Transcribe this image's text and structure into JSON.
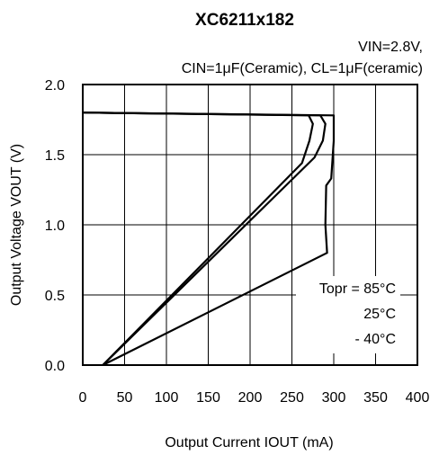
{
  "chart_data": {
    "type": "line",
    "title": "XC6211x182",
    "subtitle_line1": "VIN=2.8V,",
    "subtitle_line2": "CIN=1μF(Ceramic), CL=1μF(ceramic)",
    "xlabel": "Output Current IOUT (mA)",
    "ylabel": "Output Voltage VOUT (V)",
    "xlim": [
      0,
      400
    ],
    "ylim": [
      0,
      2.0
    ],
    "xticks": [
      "0",
      "50",
      "100",
      "150",
      "200",
      "250",
      "300",
      "350",
      "400"
    ],
    "yticks": [
      "0.0",
      "0.5",
      "1.0",
      "1.5",
      "2.0"
    ],
    "grid": true,
    "annotations": {
      "line1": "Topr = 85°C",
      "line2": "25°C",
      "line3": "- 40°C"
    },
    "series": [
      {
        "x": [
          0,
          270,
          275,
          271,
          262,
          24
        ],
        "y": [
          1.8,
          1.78,
          1.72,
          1.6,
          1.44,
          0.0
        ]
      },
      {
        "x": [
          0,
          284,
          290,
          287,
          277,
          24
        ],
        "y": [
          1.8,
          1.78,
          1.72,
          1.6,
          1.48,
          0.0
        ]
      },
      {
        "x": [
          0,
          300,
          300,
          297,
          291,
          290,
          292,
          24
        ],
        "y": [
          1.8,
          1.78,
          1.6,
          1.33,
          1.28,
          1.0,
          0.8,
          0.0
        ]
      }
    ]
  }
}
